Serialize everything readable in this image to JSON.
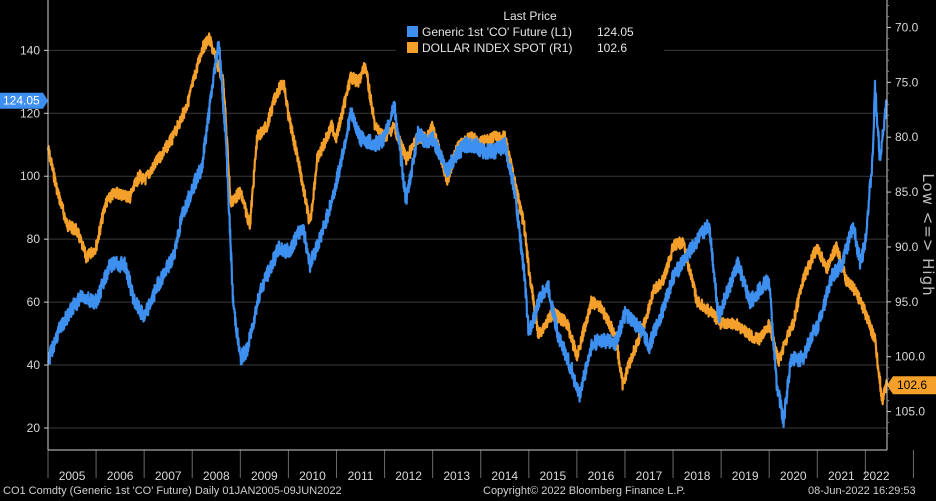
{
  "colors": {
    "blue": "#3d8ff0",
    "orange": "#f5a02a",
    "grid": "#3a3a3a",
    "axis": "#d0d0d0"
  },
  "legend": {
    "title": "Last Price",
    "items": [
      {
        "name": "Generic 1st 'CO' Future  (L1)",
        "value": "124.05",
        "color": "#3d8ff0"
      },
      {
        "name": "DOLLAR INDEX SPOT  (R1)",
        "value": "102.6",
        "color": "#f5a02a"
      }
    ]
  },
  "footer": {
    "left": "CO1 Comdty (Generic 1st 'CO' Future)  Daily 01JAN2005-09JUN2022",
    "center": "Copyright© 2022 Bloomberg Finance L.P.",
    "right": "08-Jun-2022 16:29:53"
  },
  "chart_data": {
    "type": "line",
    "title": "Last Price",
    "x_ticks": [
      "2005",
      "2006",
      "2007",
      "2008",
      "2009",
      "2010",
      "2011",
      "2012",
      "2013",
      "2014",
      "2015",
      "2016",
      "2017",
      "2018",
      "2019",
      "2020",
      "2021",
      "2022"
    ],
    "x_range": [
      2005.0,
      2022.45
    ],
    "left_axis": {
      "ticks": [
        20,
        40,
        60,
        80,
        100,
        120,
        140
      ],
      "range": [
        13,
        156
      ],
      "last_label": "124.05"
    },
    "right_axis": {
      "label": "Low <=> High",
      "inverted": true,
      "ticks": [
        "70.0",
        "75.0",
        "80.0",
        "85.0",
        "90.0",
        "95.0",
        "100.0",
        "105.0"
      ],
      "tick_values": [
        70,
        75,
        80,
        85,
        90,
        95,
        100,
        105
      ],
      "range": [
        67.5,
        108.5
      ],
      "last_label": "102.6"
    },
    "series": [
      {
        "name": "Generic 1st 'CO' Future",
        "axis": "left",
        "points": [
          [
            2005.0,
            41
          ],
          [
            2005.2,
            50
          ],
          [
            2005.5,
            58
          ],
          [
            2005.7,
            62
          ],
          [
            2006.0,
            60
          ],
          [
            2006.3,
            72
          ],
          [
            2006.6,
            72
          ],
          [
            2006.8,
            60
          ],
          [
            2007.0,
            55
          ],
          [
            2007.3,
            66
          ],
          [
            2007.6,
            74
          ],
          [
            2007.8,
            88
          ],
          [
            2008.0,
            96
          ],
          [
            2008.2,
            103
          ],
          [
            2008.45,
            132
          ],
          [
            2008.55,
            143
          ],
          [
            2008.7,
            112
          ],
          [
            2008.85,
            60
          ],
          [
            2009.0,
            42
          ],
          [
            2009.15,
            45
          ],
          [
            2009.4,
            63
          ],
          [
            2009.6,
            70
          ],
          [
            2009.8,
            77
          ],
          [
            2010.0,
            76
          ],
          [
            2010.3,
            84
          ],
          [
            2010.45,
            72
          ],
          [
            2010.7,
            82
          ],
          [
            2010.9,
            92
          ],
          [
            2011.0,
            98
          ],
          [
            2011.3,
            120
          ],
          [
            2011.5,
            112
          ],
          [
            2011.8,
            110
          ],
          [
            2012.0,
            112
          ],
          [
            2012.2,
            123
          ],
          [
            2012.45,
            92
          ],
          [
            2012.7,
            114
          ],
          [
            2012.9,
            110
          ],
          [
            2013.0,
            112
          ],
          [
            2013.3,
            102
          ],
          [
            2013.5,
            107
          ],
          [
            2013.7,
            110
          ],
          [
            2013.9,
            110
          ],
          [
            2014.0,
            108
          ],
          [
            2014.3,
            108
          ],
          [
            2014.5,
            110
          ],
          [
            2014.7,
            96
          ],
          [
            2014.9,
            70
          ],
          [
            2015.0,
            50
          ],
          [
            2015.25,
            62
          ],
          [
            2015.4,
            65
          ],
          [
            2015.6,
            50
          ],
          [
            2015.9,
            38
          ],
          [
            2016.05,
            30
          ],
          [
            2016.3,
            46
          ],
          [
            2016.5,
            48
          ],
          [
            2016.8,
            47
          ],
          [
            2017.0,
            56
          ],
          [
            2017.3,
            52
          ],
          [
            2017.5,
            46
          ],
          [
            2017.8,
            58
          ],
          [
            2018.0,
            68
          ],
          [
            2018.3,
            75
          ],
          [
            2018.75,
            85
          ],
          [
            2018.95,
            55
          ],
          [
            2019.1,
            62
          ],
          [
            2019.35,
            72
          ],
          [
            2019.6,
            60
          ],
          [
            2019.9,
            66
          ],
          [
            2020.0,
            66
          ],
          [
            2020.15,
            35
          ],
          [
            2020.3,
            22
          ],
          [
            2020.45,
            42
          ],
          [
            2020.7,
            42
          ],
          [
            2020.9,
            50
          ],
          [
            2021.0,
            52
          ],
          [
            2021.3,
            68
          ],
          [
            2021.5,
            72
          ],
          [
            2021.75,
            84
          ],
          [
            2021.9,
            72
          ],
          [
            2022.0,
            80
          ],
          [
            2022.15,
            105
          ],
          [
            2022.2,
            128
          ],
          [
            2022.3,
            106
          ],
          [
            2022.45,
            124
          ]
        ]
      },
      {
        "name": "DOLLAR INDEX SPOT",
        "axis": "right",
        "points": [
          [
            2005.0,
            81
          ],
          [
            2005.2,
            85
          ],
          [
            2005.4,
            88
          ],
          [
            2005.6,
            88.5
          ],
          [
            2005.8,
            91
          ],
          [
            2006.0,
            90
          ],
          [
            2006.2,
            86
          ],
          [
            2006.4,
            85
          ],
          [
            2006.7,
            85.5
          ],
          [
            2006.9,
            83.5
          ],
          [
            2007.0,
            84
          ],
          [
            2007.3,
            82
          ],
          [
            2007.6,
            80
          ],
          [
            2007.9,
            77
          ],
          [
            2008.2,
            72
          ],
          [
            2008.35,
            71
          ],
          [
            2008.5,
            73
          ],
          [
            2008.65,
            75
          ],
          [
            2008.8,
            86
          ],
          [
            2009.0,
            85
          ],
          [
            2009.2,
            88
          ],
          [
            2009.35,
            80
          ],
          [
            2009.55,
            79
          ],
          [
            2009.75,
            76
          ],
          [
            2009.9,
            75
          ],
          [
            2010.0,
            78
          ],
          [
            2010.2,
            82
          ],
          [
            2010.45,
            88
          ],
          [
            2010.6,
            82
          ],
          [
            2010.9,
            79
          ],
          [
            2011.0,
            80
          ],
          [
            2011.3,
            74.5
          ],
          [
            2011.45,
            75
          ],
          [
            2011.6,
            73.5
          ],
          [
            2011.8,
            79
          ],
          [
            2012.0,
            80
          ],
          [
            2012.2,
            79
          ],
          [
            2012.45,
            82
          ],
          [
            2012.7,
            80
          ],
          [
            2012.9,
            80
          ],
          [
            2013.0,
            79
          ],
          [
            2013.3,
            84
          ],
          [
            2013.5,
            81
          ],
          [
            2013.8,
            80
          ],
          [
            2014.0,
            80.5
          ],
          [
            2014.3,
            80
          ],
          [
            2014.5,
            80
          ],
          [
            2014.7,
            84
          ],
          [
            2014.9,
            88
          ],
          [
            2015.0,
            92
          ],
          [
            2015.2,
            98
          ],
          [
            2015.5,
            96
          ],
          [
            2015.8,
            97
          ],
          [
            2016.0,
            100
          ],
          [
            2016.3,
            95
          ],
          [
            2016.5,
            95.5
          ],
          [
            2016.8,
            98
          ],
          [
            2016.95,
            102.5
          ],
          [
            2017.1,
            100.5
          ],
          [
            2017.4,
            97
          ],
          [
            2017.6,
            94
          ],
          [
            2017.8,
            93
          ],
          [
            2018.0,
            90
          ],
          [
            2018.2,
            89.5
          ],
          [
            2018.5,
            95
          ],
          [
            2018.8,
            96
          ],
          [
            2019.0,
            97
          ],
          [
            2019.3,
            97
          ],
          [
            2019.6,
            98
          ],
          [
            2019.8,
            98.5
          ],
          [
            2020.0,
            97
          ],
          [
            2020.2,
            100.5
          ],
          [
            2020.3,
            99
          ],
          [
            2020.5,
            97
          ],
          [
            2020.7,
            93
          ],
          [
            2020.9,
            91
          ],
          [
            2021.0,
            90
          ],
          [
            2021.2,
            92
          ],
          [
            2021.4,
            90
          ],
          [
            2021.6,
            93
          ],
          [
            2021.8,
            94
          ],
          [
            2022.0,
            96
          ],
          [
            2022.2,
            98.5
          ],
          [
            2022.35,
            104
          ],
          [
            2022.4,
            103
          ],
          [
            2022.45,
            102.6
          ]
        ]
      }
    ]
  }
}
